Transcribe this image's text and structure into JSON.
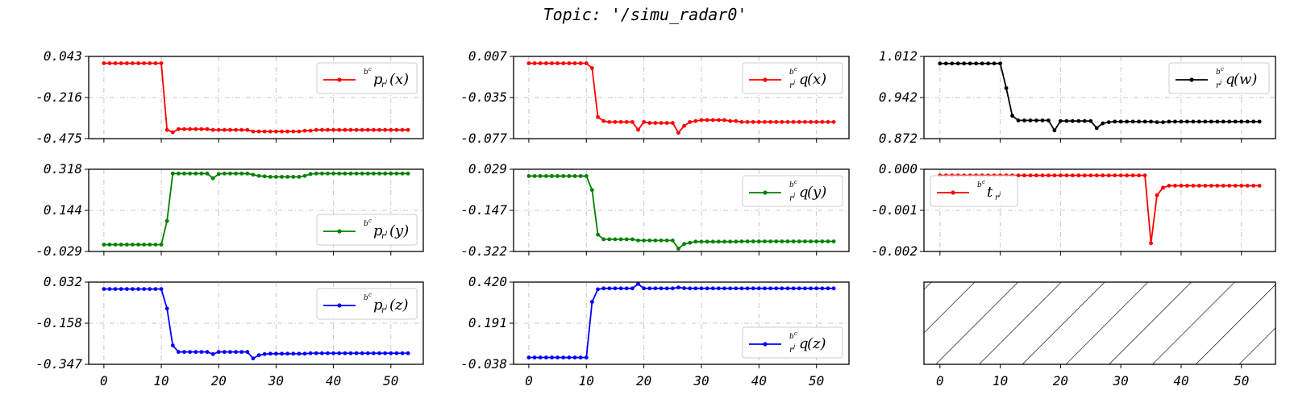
{
  "title": "Topic: '/simu_radar0'",
  "chart_data": [
    {
      "id": "px",
      "type": "line",
      "color": "#ff0000",
      "ylim": [
        -0.475,
        0.043
      ],
      "yticks": [
        "0.043",
        "-0.216",
        "-0.475"
      ],
      "legend": {
        "base": "p",
        "sub": "r",
        "subsup": "j",
        "arg": "(x)",
        "corner": "upper right"
      },
      "x": [
        0,
        1,
        2,
        3,
        4,
        5,
        6,
        7,
        8,
        9,
        10,
        11,
        12,
        13,
        14,
        15,
        16,
        17,
        18,
        19,
        20,
        21,
        22,
        23,
        24,
        25,
        26,
        27,
        28,
        29,
        30,
        31,
        32,
        33,
        34,
        35,
        36,
        37,
        38,
        39,
        40,
        41,
        42,
        43,
        44,
        45,
        46,
        47,
        48,
        49,
        50,
        51,
        52,
        53
      ],
      "y": [
        0.0,
        0.0,
        0.0,
        0.0,
        0.0,
        0.0,
        0.0,
        0.0,
        0.0,
        0.0,
        0.0,
        -0.42,
        -0.435,
        -0.415,
        -0.415,
        -0.415,
        -0.415,
        -0.415,
        -0.415,
        -0.42,
        -0.42,
        -0.42,
        -0.42,
        -0.42,
        -0.42,
        -0.42,
        -0.43,
        -0.43,
        -0.43,
        -0.43,
        -0.43,
        -0.43,
        -0.43,
        -0.43,
        -0.43,
        -0.425,
        -0.425,
        -0.42,
        -0.42,
        -0.42,
        -0.42,
        -0.42,
        -0.42,
        -0.42,
        -0.42,
        -0.42,
        -0.42,
        -0.42,
        -0.42,
        -0.42,
        -0.42,
        -0.42,
        -0.42,
        -0.42
      ]
    },
    {
      "id": "qx",
      "type": "line",
      "color": "#ff0000",
      "ylim": [
        -0.077,
        0.007
      ],
      "yticks": [
        "0.007",
        "-0.035",
        "-0.077"
      ],
      "legend": {
        "base": "q",
        "sub": "r",
        "subsup": "j",
        "arg": "(x)",
        "corner": "upper right"
      },
      "x": [
        0,
        1,
        2,
        3,
        4,
        5,
        6,
        7,
        8,
        9,
        10,
        11,
        12,
        13,
        14,
        15,
        16,
        17,
        18,
        19,
        20,
        21,
        22,
        23,
        24,
        25,
        26,
        27,
        28,
        29,
        30,
        31,
        32,
        33,
        34,
        35,
        36,
        37,
        38,
        39,
        40,
        41,
        42,
        43,
        44,
        45,
        46,
        47,
        48,
        49,
        50,
        51,
        52,
        53
      ],
      "y": [
        0.0,
        0.0,
        0.0,
        0.0,
        0.0,
        0.0,
        0.0,
        0.0,
        0.0,
        0.0,
        0.0,
        -0.005,
        -0.055,
        -0.059,
        -0.06,
        -0.06,
        -0.06,
        -0.06,
        -0.06,
        -0.068,
        -0.06,
        -0.061,
        -0.061,
        -0.061,
        -0.061,
        -0.061,
        -0.071,
        -0.064,
        -0.06,
        -0.059,
        -0.058,
        -0.058,
        -0.058,
        -0.058,
        -0.058,
        -0.059,
        -0.059,
        -0.06,
        -0.06,
        -0.06,
        -0.06,
        -0.06,
        -0.06,
        -0.06,
        -0.06,
        -0.06,
        -0.06,
        -0.06,
        -0.06,
        -0.06,
        -0.06,
        -0.06,
        -0.06,
        -0.06
      ]
    },
    {
      "id": "qw",
      "type": "line",
      "color": "#000000",
      "ylim": [
        0.872,
        1.012
      ],
      "yticks": [
        "1.012",
        "0.942",
        "0.872"
      ],
      "legend": {
        "base": "q",
        "sub": "r",
        "subsup": "j",
        "arg": "(w)",
        "corner": "upper right"
      },
      "x": [
        0,
        1,
        2,
        3,
        4,
        5,
        6,
        7,
        8,
        9,
        10,
        11,
        12,
        13,
        14,
        15,
        16,
        17,
        18,
        19,
        20,
        21,
        22,
        23,
        24,
        25,
        26,
        27,
        28,
        29,
        30,
        31,
        32,
        33,
        34,
        35,
        36,
        37,
        38,
        39,
        40,
        41,
        42,
        43,
        44,
        45,
        46,
        47,
        48,
        49,
        50,
        51,
        52,
        53
      ],
      "y": [
        1.0,
        1.0,
        1.0,
        1.0,
        1.0,
        1.0,
        1.0,
        1.0,
        1.0,
        1.0,
        1.0,
        0.958,
        0.911,
        0.903,
        0.903,
        0.903,
        0.903,
        0.903,
        0.903,
        0.886,
        0.902,
        0.902,
        0.902,
        0.902,
        0.902,
        0.902,
        0.89,
        0.898,
        0.9,
        0.901,
        0.901,
        0.901,
        0.901,
        0.901,
        0.901,
        0.901,
        0.9,
        0.9,
        0.901,
        0.901,
        0.901,
        0.901,
        0.901,
        0.901,
        0.901,
        0.901,
        0.901,
        0.901,
        0.901,
        0.901,
        0.901,
        0.901,
        0.901,
        0.901
      ]
    },
    {
      "id": "py",
      "type": "line",
      "color": "#008000",
      "ylim": [
        -0.029,
        0.318
      ],
      "yticks": [
        "0.318",
        "0.144",
        "-0.029"
      ],
      "legend": {
        "base": "p",
        "sub": "r",
        "subsup": "j",
        "arg": "(y)",
        "corner": "lower right"
      },
      "x": [
        0,
        1,
        2,
        3,
        4,
        5,
        6,
        7,
        8,
        9,
        10,
        11,
        12,
        13,
        14,
        15,
        16,
        17,
        18,
        19,
        20,
        21,
        22,
        23,
        24,
        25,
        26,
        27,
        28,
        29,
        30,
        31,
        32,
        33,
        34,
        35,
        36,
        37,
        38,
        39,
        40,
        41,
        42,
        43,
        44,
        45,
        46,
        47,
        48,
        49,
        50,
        51,
        52,
        53
      ],
      "y": [
        0.0,
        0.0,
        0.0,
        0.0,
        0.0,
        0.0,
        0.0,
        0.0,
        0.0,
        0.0,
        0.0,
        0.1,
        0.3,
        0.3,
        0.3,
        0.3,
        0.3,
        0.3,
        0.3,
        0.28,
        0.298,
        0.3,
        0.3,
        0.3,
        0.3,
        0.3,
        0.295,
        0.29,
        0.288,
        0.286,
        0.286,
        0.286,
        0.286,
        0.286,
        0.286,
        0.29,
        0.298,
        0.3,
        0.3,
        0.3,
        0.3,
        0.3,
        0.3,
        0.3,
        0.3,
        0.3,
        0.3,
        0.3,
        0.3,
        0.3,
        0.3,
        0.3,
        0.3,
        0.3
      ]
    },
    {
      "id": "qy",
      "type": "line",
      "color": "#008000",
      "ylim": [
        -0.322,
        0.029
      ],
      "yticks": [
        "0.029",
        "-0.147",
        "-0.322"
      ],
      "legend": {
        "base": "q",
        "sub": "r",
        "subsup": "j",
        "arg": "(y)",
        "corner": "upper right"
      },
      "x": [
        0,
        1,
        2,
        3,
        4,
        5,
        6,
        7,
        8,
        9,
        10,
        11,
        12,
        13,
        14,
        15,
        16,
        17,
        18,
        19,
        20,
        21,
        22,
        23,
        24,
        25,
        26,
        27,
        28,
        29,
        30,
        31,
        32,
        33,
        34,
        35,
        36,
        37,
        38,
        39,
        40,
        41,
        42,
        43,
        44,
        45,
        46,
        47,
        48,
        49,
        50,
        51,
        52,
        53
      ],
      "y": [
        0.0,
        0.0,
        0.0,
        0.0,
        0.0,
        0.0,
        0.0,
        0.0,
        0.0,
        0.0,
        0.0,
        -0.06,
        -0.25,
        -0.27,
        -0.27,
        -0.27,
        -0.27,
        -0.27,
        -0.27,
        -0.275,
        -0.275,
        -0.275,
        -0.275,
        -0.275,
        -0.275,
        -0.275,
        -0.31,
        -0.29,
        -0.285,
        -0.28,
        -0.28,
        -0.28,
        -0.28,
        -0.28,
        -0.28,
        -0.28,
        -0.28,
        -0.279,
        -0.279,
        -0.279,
        -0.279,
        -0.279,
        -0.279,
        -0.279,
        -0.279,
        -0.279,
        -0.279,
        -0.279,
        -0.279,
        -0.279,
        -0.279,
        -0.279,
        -0.279,
        -0.279
      ]
    },
    {
      "id": "t",
      "type": "line",
      "color": "#ff0000",
      "ylim": [
        -0.002,
        0.0
      ],
      "yticks": [
        "0.000",
        "-0.001",
        "-0.002"
      ],
      "legend": {
        "base": "t",
        "sub": "r",
        "subsup": "j",
        "arg": "",
        "corner": "upper left"
      },
      "x": [
        0,
        1,
        2,
        3,
        4,
        5,
        6,
        7,
        8,
        9,
        10,
        11,
        12,
        13,
        14,
        15,
        16,
        17,
        18,
        19,
        20,
        21,
        22,
        23,
        24,
        25,
        26,
        27,
        28,
        29,
        30,
        31,
        32,
        33,
        34,
        35,
        36,
        37,
        38,
        39,
        40,
        41,
        42,
        43,
        44,
        45,
        46,
        47,
        48,
        49,
        50,
        51,
        52,
        53
      ],
      "y": [
        -0.00015,
        -0.00015,
        -0.00015,
        -0.00015,
        -0.00015,
        -0.00015,
        -0.00015,
        -0.00015,
        -0.00015,
        -0.00015,
        -0.00015,
        -0.00015,
        -0.00015,
        -0.00015,
        -0.00015,
        -0.00015,
        -0.00015,
        -0.00015,
        -0.00015,
        -0.00015,
        -0.00015,
        -0.00015,
        -0.00015,
        -0.00015,
        -0.00015,
        -0.00015,
        -0.00015,
        -0.00015,
        -0.00015,
        -0.00015,
        -0.00015,
        -0.00015,
        -0.00015,
        -0.00015,
        -0.00015,
        -0.0018,
        -0.00063,
        -0.00045,
        -0.0004,
        -0.0004,
        -0.0004,
        -0.0004,
        -0.0004,
        -0.0004,
        -0.0004,
        -0.0004,
        -0.0004,
        -0.0004,
        -0.0004,
        -0.0004,
        -0.0004,
        -0.0004,
        -0.0004,
        -0.0004
      ]
    },
    {
      "id": "pz",
      "type": "line",
      "color": "#0000ff",
      "ylim": [
        -0.347,
        0.032
      ],
      "yticks": [
        "0.032",
        "-0.158",
        "-0.347"
      ],
      "legend": {
        "base": "p",
        "sub": "r",
        "subsup": "j",
        "arg": "(z)",
        "corner": "upper right"
      },
      "x": [
        0,
        1,
        2,
        3,
        4,
        5,
        6,
        7,
        8,
        9,
        10,
        11,
        12,
        13,
        14,
        15,
        16,
        17,
        18,
        19,
        20,
        21,
        22,
        23,
        24,
        25,
        26,
        27,
        28,
        29,
        30,
        31,
        32,
        33,
        34,
        35,
        36,
        37,
        38,
        39,
        40,
        41,
        42,
        43,
        44,
        45,
        46,
        47,
        48,
        49,
        50,
        51,
        52,
        53
      ],
      "y": [
        0.0,
        0.0,
        0.0,
        0.0,
        0.0,
        0.0,
        0.0,
        0.0,
        0.0,
        0.0,
        0.0,
        -0.09,
        -0.26,
        -0.29,
        -0.29,
        -0.29,
        -0.29,
        -0.29,
        -0.29,
        -0.3,
        -0.29,
        -0.29,
        -0.29,
        -0.29,
        -0.29,
        -0.29,
        -0.32,
        -0.305,
        -0.3,
        -0.298,
        -0.298,
        -0.298,
        -0.298,
        -0.298,
        -0.298,
        -0.298,
        -0.296,
        -0.296,
        -0.296,
        -0.296,
        -0.296,
        -0.296,
        -0.296,
        -0.296,
        -0.296,
        -0.296,
        -0.296,
        -0.296,
        -0.296,
        -0.296,
        -0.296,
        -0.296,
        -0.296,
        -0.296
      ]
    },
    {
      "id": "qz",
      "type": "line",
      "color": "#0000ff",
      "ylim": [
        -0.038,
        0.42
      ],
      "yticks": [
        "0.420",
        "0.191",
        "-0.038"
      ],
      "legend": {
        "base": "q",
        "sub": "r",
        "subsup": "j",
        "arg": "(z)",
        "corner": "lower right"
      },
      "x": [
        0,
        1,
        2,
        3,
        4,
        5,
        6,
        7,
        8,
        9,
        10,
        11,
        12,
        13,
        14,
        15,
        16,
        17,
        18,
        19,
        20,
        21,
        22,
        23,
        24,
        25,
        26,
        27,
        28,
        29,
        30,
        31,
        32,
        33,
        34,
        35,
        36,
        37,
        38,
        39,
        40,
        41,
        42,
        43,
        44,
        45,
        46,
        47,
        48,
        49,
        50,
        51,
        52,
        53
      ],
      "y": [
        0.0,
        0.0,
        0.0,
        0.0,
        0.0,
        0.0,
        0.0,
        0.0,
        0.0,
        0.0,
        0.0,
        0.31,
        0.38,
        0.385,
        0.385,
        0.385,
        0.385,
        0.385,
        0.385,
        0.41,
        0.385,
        0.385,
        0.385,
        0.385,
        0.385,
        0.385,
        0.39,
        0.386,
        0.385,
        0.385,
        0.385,
        0.385,
        0.385,
        0.385,
        0.385,
        0.385,
        0.385,
        0.385,
        0.385,
        0.385,
        0.385,
        0.385,
        0.385,
        0.385,
        0.385,
        0.385,
        0.385,
        0.385,
        0.385,
        0.385,
        0.385,
        0.385,
        0.385,
        0.385
      ]
    }
  ],
  "hatched_panel": {
    "note": "empty panel with diagonal hatch"
  },
  "xaxis": {
    "xlim": [
      -2.65,
      55.65
    ],
    "ticks": [
      0,
      10,
      20,
      30,
      40,
      50
    ]
  },
  "legend_sup": "b",
  "legend_supsup": "c"
}
